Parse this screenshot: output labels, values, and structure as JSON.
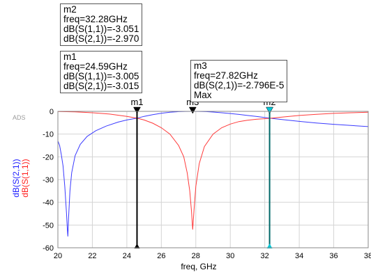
{
  "app": {
    "brand": "ADS"
  },
  "markers": [
    {
      "id": "m2",
      "label": "m2",
      "lines": [
        "freq=32.28GHz",
        "dB(S(1,1))=-3.051",
        "dB(S(2,1))=-2.970"
      ],
      "freq": 32.28,
      "color": "#00c8d8"
    },
    {
      "id": "m1",
      "label": "m1",
      "lines": [
        "freq=24.59GHz",
        "dB(S(1,1))=-3.005",
        "dB(S(2,1))=-3.015"
      ],
      "freq": 24.59,
      "color": "#000000"
    },
    {
      "id": "m3",
      "label": "m3",
      "lines": [
        "freq=27.82GHz",
        "dB(S(2,1))=-2.796E-5",
        "Max"
      ],
      "freq": 27.82,
      "color": "#000000"
    }
  ],
  "chart_data": {
    "type": "line",
    "xlabel": "freq, GHz",
    "ylabel_lines": [
      "dB(S(2,1))",
      "dB(S(1,1))"
    ],
    "xlim": [
      20,
      38
    ],
    "ylim": [
      -60,
      0
    ],
    "x_ticks": [
      "20",
      "22",
      "24",
      "26",
      "28",
      "30",
      "32",
      "34",
      "36",
      "38"
    ],
    "y_ticks": [
      "0",
      "-10",
      "-20",
      "-30",
      "-40",
      "-50",
      "-60"
    ],
    "grid": true,
    "series": [
      {
        "name": "dB(S(2,1))",
        "color": "#3a3aff",
        "x": [
          20.0,
          20.1,
          20.2,
          20.3,
          20.4,
          20.5,
          20.55,
          20.58,
          20.62,
          20.7,
          20.8,
          21.0,
          21.3,
          21.7,
          22.2,
          22.8,
          23.5,
          24.0,
          24.59,
          25.0,
          25.5,
          26.0,
          26.5,
          27.0,
          27.4,
          27.82,
          28.2,
          28.6,
          29.0,
          29.5,
          30.0,
          30.5,
          31.0,
          31.5,
          32.28,
          33.0,
          34.0,
          35.0,
          36.0,
          37.0,
          38.0
        ],
        "values": [
          -13,
          -15,
          -19,
          -24,
          -33,
          -45,
          -52,
          -55,
          -47,
          -35,
          -27,
          -19.5,
          -14.5,
          -11,
          -8.5,
          -6.5,
          -4.7,
          -3.8,
          -3.015,
          -2.2,
          -1.45,
          -0.85,
          -0.4,
          -0.12,
          -0.02,
          0.0,
          -0.03,
          -0.12,
          -0.3,
          -0.6,
          -0.95,
          -1.35,
          -1.8,
          -2.25,
          -2.97,
          -3.6,
          -4.4,
          -5.1,
          -5.7,
          -6.2,
          -6.7
        ]
      },
      {
        "name": "dB(S(1,1))",
        "color": "#ff3a3a",
        "x": [
          20.0,
          21.0,
          22.0,
          23.0,
          24.0,
          24.59,
          25.0,
          25.5,
          26.0,
          26.5,
          27.0,
          27.3,
          27.5,
          27.65,
          27.75,
          27.82,
          27.9,
          28.0,
          28.2,
          28.5,
          29.0,
          29.5,
          30.0,
          30.5,
          31.0,
          31.5,
          32.28,
          33.0,
          34.0,
          35.0,
          36.0,
          37.0,
          38.0
        ],
        "values": [
          -0.1,
          -0.25,
          -0.6,
          -1.2,
          -2.2,
          -3.005,
          -3.8,
          -5.2,
          -7.2,
          -10,
          -15,
          -20,
          -27,
          -35,
          -44,
          -52,
          -43,
          -33,
          -23,
          -15.5,
          -10,
          -7.2,
          -5.6,
          -4.5,
          -3.9,
          -3.5,
          -3.051,
          -2.5,
          -1.8,
          -1.3,
          -0.9,
          -0.6,
          -0.4
        ]
      }
    ]
  }
}
